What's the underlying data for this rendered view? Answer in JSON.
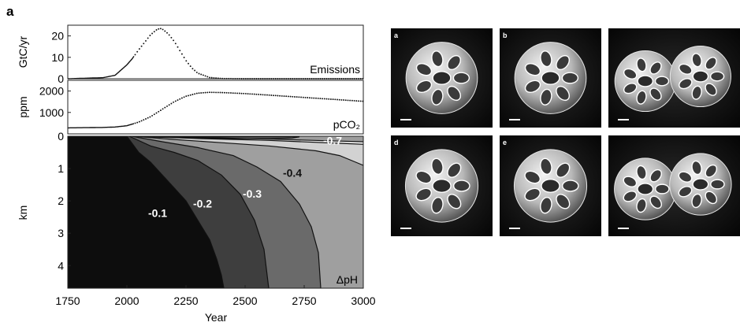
{
  "panel_label": "a",
  "chart_data": [
    {
      "type": "line",
      "panel": "emissions",
      "ylabel": "GtC/yr",
      "annotation": "Emissions",
      "x": [
        1750,
        1900,
        1950,
        1990,
        2000,
        2020,
        2050,
        2075,
        2100,
        2125,
        2140,
        2150,
        2175,
        2200,
        2225,
        2250,
        2275,
        2300,
        2350,
        2400,
        2500,
        2750,
        3000
      ],
      "y": [
        0,
        0.5,
        1.6,
        5.5,
        6.5,
        9,
        13.5,
        17,
        20.5,
        22.8,
        23.5,
        23.2,
        21,
        17.5,
        13,
        8.5,
        5,
        2.6,
        0.6,
        0.1,
        0,
        0,
        0
      ],
      "xlim": [
        1750,
        3000
      ],
      "ylim": [
        0,
        25
      ],
      "yticks": [
        "0",
        "10",
        "20"
      ]
    },
    {
      "type": "line",
      "panel": "pco2",
      "ylabel": "ppm",
      "annotation": "pCO₂",
      "x": [
        1750,
        1900,
        1950,
        2000,
        2050,
        2100,
        2150,
        2200,
        2250,
        2300,
        2350,
        2400,
        2500,
        2600,
        2750,
        3000
      ],
      "y": [
        280,
        300,
        320,
        380,
        550,
        800,
        1150,
        1500,
        1760,
        1900,
        1940,
        1930,
        1880,
        1810,
        1700,
        1520
      ],
      "xlim": [
        1750,
        3000
      ],
      "ylim": [
        0,
        2500
      ],
      "yticks": [
        "1000",
        "2000"
      ]
    },
    {
      "type": "contour",
      "panel": "delta_pH",
      "ylabel": "km",
      "xlabel": "Year",
      "annotation": "ΔpH",
      "contour_labels": [
        "-0.1",
        "-0.2",
        "-0.3",
        "-0.4",
        "-0.7"
      ],
      "xlim": [
        1750,
        3000
      ],
      "ylim_depth_km": [
        0,
        4.7
      ],
      "yticks": [
        "0",
        "1",
        "2",
        "3",
        "4"
      ],
      "xticks": [
        "1750",
        "2000",
        "2250",
        "2500",
        "2750",
        "3000"
      ],
      "levels": [
        {
          "value": -0.1,
          "x": [
            2000,
            2050,
            2100,
            2150,
            2200,
            2250,
            2300,
            2350,
            2380,
            2400,
            2410
          ],
          "depth_km": [
            0,
            0.5,
            0.8,
            1.2,
            1.6,
            2.0,
            2.6,
            3.2,
            3.8,
            4.3,
            4.7
          ]
        },
        {
          "value": -0.2,
          "x": [
            2010,
            2100,
            2200,
            2300,
            2400,
            2480,
            2540,
            2580,
            2600
          ],
          "depth_km": [
            0,
            0.3,
            0.5,
            0.75,
            1.2,
            1.8,
            2.6,
            3.5,
            4.7
          ]
        },
        {
          "value": -0.3,
          "x": [
            2020,
            2150,
            2300,
            2450,
            2550,
            2650,
            2730,
            2780,
            2810,
            2820
          ],
          "depth_km": [
            0,
            0.17,
            0.35,
            0.6,
            0.95,
            1.4,
            2.1,
            2.8,
            3.6,
            4.7
          ]
        },
        {
          "value": -0.4,
          "x": [
            2030,
            2200,
            2400,
            2600,
            2800,
            2900,
            2960,
            3000
          ],
          "depth_km": [
            0,
            0.1,
            0.2,
            0.3,
            0.45,
            0.6,
            0.78,
            0.9
          ]
        },
        {
          "value": -0.5,
          "x": [
            2045,
            2300,
            2600,
            2900,
            3000
          ],
          "depth_km": [
            0,
            0.07,
            0.13,
            0.22,
            0.25
          ]
        },
        {
          "value": -0.6,
          "x": [
            2060,
            2300,
            2600,
            2900,
            3000
          ],
          "depth_km": [
            0,
            0.035,
            0.09,
            0.15,
            0.17
          ]
        },
        {
          "value": -0.7,
          "x": [
            2080,
            2200,
            2400,
            2600,
            2700,
            2730
          ],
          "depth_km": [
            0.02,
            0.045,
            0.075,
            0.075,
            0.055,
            0.02
          ]
        }
      ]
    }
  ],
  "photos": {
    "labels": [
      "a",
      "b",
      "",
      "d",
      "e",
      ""
    ]
  }
}
